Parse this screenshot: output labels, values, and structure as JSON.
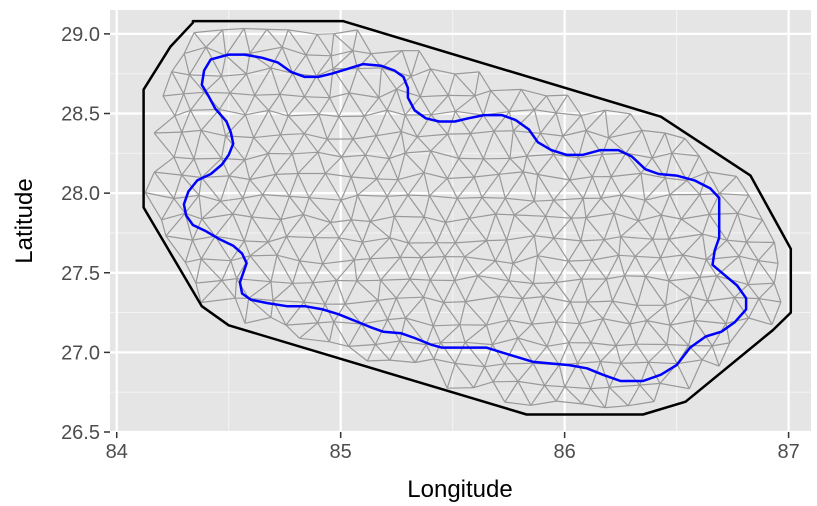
{
  "chart_data": {
    "type": "map",
    "xlabel": "Longitude",
    "ylabel": "Latitude",
    "xlim": [
      83.97,
      87.1
    ],
    "ylim": [
      26.5,
      29.15
    ],
    "x_ticks": [
      84,
      85,
      86,
      87
    ],
    "y_ticks": [
      26.5,
      27.0,
      27.5,
      28.0,
      28.5,
      29.0
    ],
    "x_tick_labels": [
      "84",
      "85",
      "86",
      "87"
    ],
    "y_tick_labels": [
      "26.5",
      "27.0",
      "27.5",
      "28.0",
      "28.5",
      "29.0"
    ],
    "grid": true,
    "panel_background": "#e5e5e5",
    "mesh_color": "#999999",
    "colors": {
      "outer_boundary": "#000000",
      "inner_boundary": "#0000ff"
    },
    "series": [
      {
        "role": "outer_boundary",
        "points": [
          [
            84.34,
            29.08
          ],
          [
            85.01,
            29.08
          ],
          [
            86.43,
            28.48
          ],
          [
            86.83,
            28.11
          ],
          [
            87.01,
            27.65
          ],
          [
            87.01,
            27.25
          ],
          [
            86.93,
            27.14
          ],
          [
            86.54,
            26.69
          ],
          [
            86.35,
            26.61
          ],
          [
            85.83,
            26.61
          ],
          [
            84.5,
            27.17
          ],
          [
            84.38,
            27.29
          ],
          [
            84.12,
            27.91
          ],
          [
            84.12,
            28.65
          ],
          [
            84.24,
            28.92
          ],
          [
            84.34,
            29.07
          ]
        ]
      },
      {
        "role": "inner_boundary",
        "points": [
          [
            84.42,
            28.84
          ],
          [
            84.5,
            28.87
          ],
          [
            84.57,
            28.87
          ],
          [
            84.65,
            28.85
          ],
          [
            84.72,
            28.82
          ],
          [
            84.78,
            28.76
          ],
          [
            84.84,
            28.73
          ],
          [
            84.9,
            28.73
          ],
          [
            84.96,
            28.75
          ],
          [
            85.03,
            28.78
          ],
          [
            85.1,
            28.81
          ],
          [
            85.18,
            28.8
          ],
          [
            85.24,
            28.77
          ],
          [
            85.28,
            28.73
          ],
          [
            85.3,
            28.66
          ],
          [
            85.3,
            28.6
          ],
          [
            85.33,
            28.52
          ],
          [
            85.38,
            28.47
          ],
          [
            85.44,
            28.45
          ],
          [
            85.51,
            28.45
          ],
          [
            85.57,
            28.47
          ],
          [
            85.64,
            28.49
          ],
          [
            85.72,
            28.49
          ],
          [
            85.78,
            28.46
          ],
          [
            85.84,
            28.4
          ],
          [
            85.88,
            28.32
          ],
          [
            85.94,
            28.27
          ],
          [
            86.01,
            28.24
          ],
          [
            86.08,
            28.24
          ],
          [
            86.16,
            28.27
          ],
          [
            86.24,
            28.27
          ],
          [
            86.3,
            28.23
          ],
          [
            86.36,
            28.15
          ],
          [
            86.42,
            28.12
          ],
          [
            86.5,
            28.11
          ],
          [
            86.58,
            28.08
          ],
          [
            86.65,
            28.03
          ],
          [
            86.69,
            27.97
          ],
          [
            86.69,
            27.87
          ],
          [
            86.69,
            27.72
          ],
          [
            86.67,
            27.64
          ],
          [
            86.66,
            27.55
          ],
          [
            86.71,
            27.49
          ],
          [
            86.77,
            27.42
          ],
          [
            86.81,
            27.34
          ],
          [
            86.81,
            27.27
          ],
          [
            86.76,
            27.19
          ],
          [
            86.7,
            27.13
          ],
          [
            86.63,
            27.1
          ],
          [
            86.56,
            27.03
          ],
          [
            86.5,
            26.92
          ],
          [
            86.43,
            26.86
          ],
          [
            86.35,
            26.82
          ],
          [
            86.25,
            26.82
          ],
          [
            86.17,
            26.86
          ],
          [
            86.1,
            26.9
          ],
          [
            86.02,
            26.92
          ],
          [
            85.94,
            26.93
          ],
          [
            85.86,
            26.94
          ],
          [
            85.79,
            26.97
          ],
          [
            85.72,
            27.0
          ],
          [
            85.65,
            27.03
          ],
          [
            85.59,
            27.03
          ],
          [
            85.51,
            27.03
          ],
          [
            85.45,
            27.03
          ],
          [
            85.4,
            27.05
          ],
          [
            85.33,
            27.09
          ],
          [
            85.27,
            27.12
          ],
          [
            85.19,
            27.13
          ],
          [
            85.13,
            27.16
          ],
          [
            85.06,
            27.2
          ],
          [
            84.99,
            27.24
          ],
          [
            84.92,
            27.27
          ],
          [
            84.84,
            27.29
          ],
          [
            84.76,
            27.29
          ],
          [
            84.67,
            27.31
          ],
          [
            84.6,
            27.33
          ],
          [
            84.56,
            27.37
          ],
          [
            84.55,
            27.44
          ],
          [
            84.57,
            27.52
          ],
          [
            84.58,
            27.56
          ],
          [
            84.56,
            27.62
          ],
          [
            84.52,
            27.67
          ],
          [
            84.46,
            27.71
          ],
          [
            84.4,
            27.76
          ],
          [
            84.34,
            27.8
          ],
          [
            84.31,
            27.86
          ],
          [
            84.3,
            27.93
          ],
          [
            84.32,
            28.01
          ],
          [
            84.36,
            28.08
          ],
          [
            84.42,
            28.12
          ],
          [
            84.47,
            28.18
          ],
          [
            84.5,
            28.24
          ],
          [
            84.52,
            28.31
          ],
          [
            84.51,
            28.38
          ],
          [
            84.49,
            28.45
          ],
          [
            84.44,
            28.53
          ],
          [
            84.41,
            28.61
          ],
          [
            84.38,
            28.68
          ],
          [
            84.39,
            28.77
          ]
        ]
      }
    ]
  }
}
